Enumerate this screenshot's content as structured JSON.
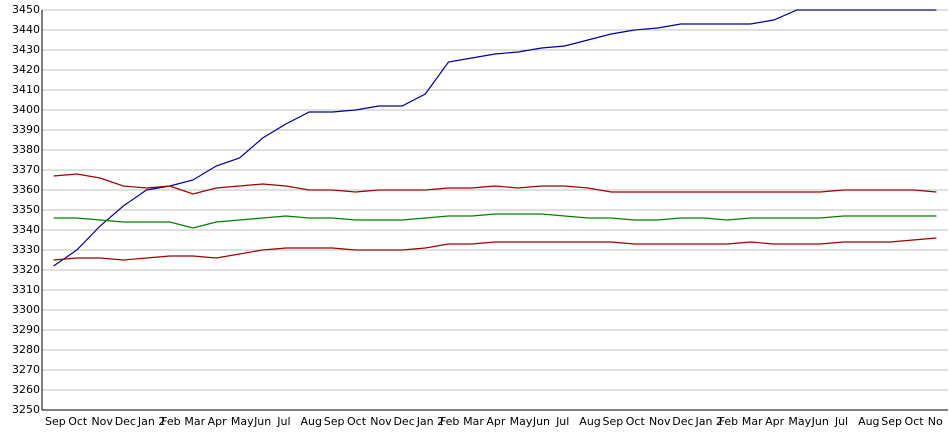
{
  "chart_data": {
    "type": "line",
    "categories": [
      "Sep",
      "Oct",
      "Nov",
      "Dec",
      "Jan 2",
      "Feb",
      "Mar",
      "Apr",
      "May",
      "Jun",
      "Jul",
      "Aug",
      "Sep",
      "Oct",
      "Nov",
      "Dec",
      "Jan 2",
      "Feb",
      "Mar",
      "Apr",
      "May",
      "Jun",
      "Jul",
      "Aug",
      "Sep",
      "Oct",
      "Nov",
      "Dec",
      "Jan 2",
      "Feb",
      "Mar",
      "Apr",
      "May",
      "Jun",
      "Jul",
      "Aug",
      "Sep",
      "Oct",
      "No"
    ],
    "series": [
      {
        "color": "#000099",
        "values": [
          3322,
          3330,
          3342,
          3352,
          3360,
          3362,
          3365,
          3372,
          3376,
          3386,
          3393,
          3399,
          3399,
          3400,
          3402,
          3402,
          3408,
          3424,
          3426,
          3428,
          3429,
          3431,
          3432,
          3435,
          3438,
          3440,
          3441,
          3443,
          3443,
          3443,
          3443,
          3445,
          3450,
          3450,
          3450,
          3450,
          3450,
          3450,
          3450
        ]
      },
      {
        "color": "#a00000",
        "values": [
          3367,
          3368,
          3366,
          3362,
          3361,
          3362,
          3358,
          3361,
          3362,
          3363,
          3362,
          3360,
          3360,
          3359,
          3360,
          3360,
          3360,
          3361,
          3361,
          3362,
          3361,
          3362,
          3362,
          3361,
          3359,
          3359,
          3359,
          3359,
          3359,
          3359,
          3359,
          3359,
          3359,
          3359,
          3360,
          3360,
          3360,
          3360,
          3359
        ]
      },
      {
        "color": "#008000",
        "values": [
          3346,
          3346,
          3345,
          3344,
          3344,
          3344,
          3341,
          3344,
          3345,
          3346,
          3347,
          3346,
          3346,
          3345,
          3345,
          3345,
          3346,
          3347,
          3347,
          3348,
          3348,
          3348,
          3347,
          3346,
          3346,
          3345,
          3345,
          3346,
          3346,
          3345,
          3346,
          3346,
          3346,
          3346,
          3347,
          3347,
          3347,
          3347,
          3347
        ]
      },
      {
        "color": "#a00000",
        "values": [
          3325,
          3326,
          3326,
          3325,
          3326,
          3327,
          3327,
          3326,
          3328,
          3330,
          3331,
          3331,
          3331,
          3330,
          3330,
          3330,
          3331,
          3333,
          3333,
          3334,
          3334,
          3334,
          3334,
          3334,
          3334,
          3333,
          3333,
          3333,
          3333,
          3333,
          3334,
          3333,
          3333,
          3333,
          3334,
          3334,
          3334,
          3335,
          3336
        ]
      }
    ],
    "ylim": [
      3250,
      3450
    ],
    "yticks": [
      3250,
      3260,
      3270,
      3280,
      3290,
      3300,
      3310,
      3320,
      3330,
      3340,
      3350,
      3360,
      3370,
      3380,
      3390,
      3400,
      3410,
      3420,
      3430,
      3440,
      3450
    ],
    "grid": true
  }
}
